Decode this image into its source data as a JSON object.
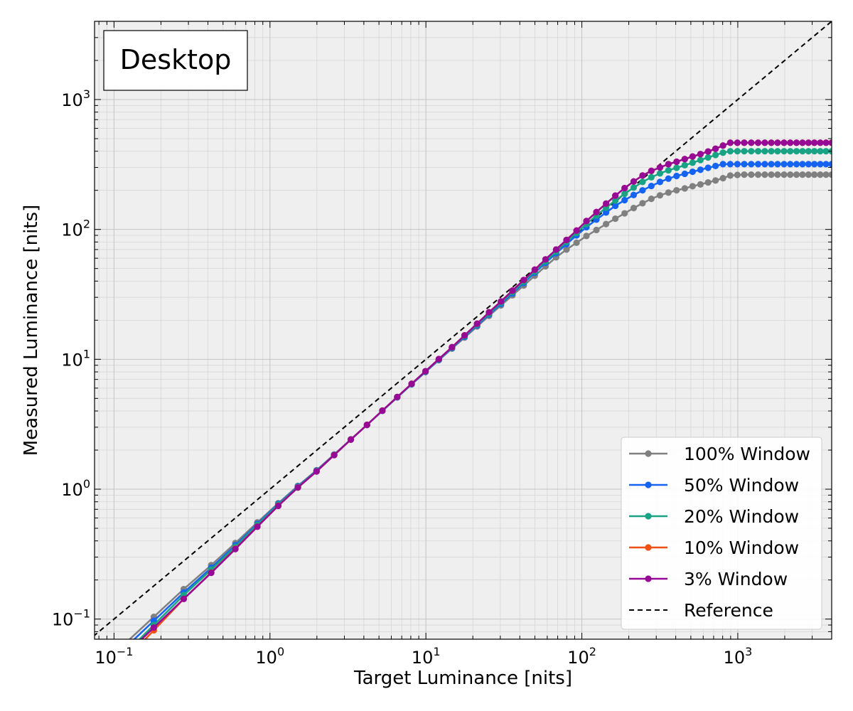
{
  "chart_data": {
    "type": "line",
    "title": "Desktop",
    "xlabel": "Target Luminance [nits]",
    "ylabel": "Measured Luminance [nits]",
    "xscale": "log",
    "yscale": "log",
    "xlim": [
      0.075,
      4000
    ],
    "ylim": [
      0.07,
      4000
    ],
    "grid": true,
    "legend_position": "lower right",
    "x_tick_labels": [
      "10",
      "10",
      "10",
      "10",
      "10"
    ],
    "x_tick_exponents": [
      "−1",
      "0",
      "1",
      "2",
      "3"
    ],
    "y_tick_labels": [
      "10",
      "10",
      "10",
      "10"
    ],
    "y_tick_exponents": [
      "−1",
      "0",
      "1",
      "3"
    ],
    "y_tick_label_2": "10",
    "y_tick_exponent_2": "2",
    "colors": {
      "100% Window": "#808080",
      "50% Window": "#1463f3",
      "20% Window": "#18a484",
      "10% Window": "#f05014",
      "3% Window": "#960a96",
      "Reference": "#000000",
      "plot_background": "#efefef"
    },
    "x": [
      0.18,
      0.28,
      0.42,
      0.6,
      0.83,
      1.13,
      1.51,
      1.99,
      2.58,
      3.3,
      4.19,
      5.26,
      6.55,
      8.1,
      9.94,
      12.1,
      14.7,
      17.7,
      21.3,
      25.4,
      30.3,
      35.9,
      42.4,
      49.9,
      58.5,
      68.4,
      79.7,
      92.5,
      107,
      124,
      143,
      164,
      188,
      215,
      245,
      279,
      317,
      359,
      405,
      457,
      513,
      576,
      645,
      720,
      804,
      895,
      994,
      1100,
      1220,
      1350,
      1490,
      1640,
      1800,
      1980,
      2170,
      2380,
      2600,
      2840,
      3100,
      3380,
      3680,
      4000
    ],
    "series": [
      {
        "name": "100% Window",
        "values": [
          0.104,
          0.17,
          0.26,
          0.385,
          0.555,
          0.78,
          1.06,
          1.4,
          1.85,
          2.42,
          3.13,
          4.02,
          5.1,
          6.42,
          7.98,
          9.85,
          12.1,
          14.7,
          17.9,
          21.6,
          26.0,
          31.1,
          37.0,
          44.0,
          52.0,
          61.0,
          70.0,
          79.0,
          89.0,
          99.0,
          110,
          121,
          133,
          146,
          159,
          172,
          183,
          192,
          200,
          207,
          215,
          222,
          230,
          238,
          248,
          260,
          263,
          264,
          264,
          264,
          264,
          264,
          264,
          264,
          264,
          264,
          264,
          264,
          264,
          264,
          264,
          264
        ]
      },
      {
        "name": "50% Window",
        "values": [
          0.097,
          0.16,
          0.248,
          0.37,
          0.54,
          0.77,
          1.05,
          1.39,
          1.84,
          2.41,
          3.12,
          4.01,
          5.09,
          6.42,
          8.0,
          9.9,
          12.2,
          14.9,
          18.2,
          22.1,
          26.7,
          32.2,
          38.7,
          46.4,
          55.3,
          65.5,
          77.0,
          90.0,
          104,
          119,
          135,
          152,
          168,
          184,
          200,
          216,
          232,
          246,
          258,
          268,
          278,
          288,
          298,
          308,
          318,
          318,
          318,
          318,
          318,
          318,
          318,
          318,
          318,
          318,
          318,
          318,
          318,
          318,
          318,
          318,
          318,
          318
        ]
      },
      {
        "name": "20% Window",
        "values": [
          0.09,
          0.153,
          0.24,
          0.36,
          0.53,
          0.76,
          1.04,
          1.38,
          1.84,
          2.41,
          3.13,
          4.02,
          5.11,
          6.45,
          8.05,
          9.97,
          12.3,
          15.1,
          18.5,
          22.5,
          27.3,
          32.9,
          39.6,
          47.5,
          56.7,
          67.5,
          80.0,
          94.0,
          110,
          128,
          147,
          167,
          188,
          210,
          232,
          252,
          270,
          285,
          298,
          312,
          326,
          342,
          358,
          374,
          390,
          400,
          400,
          400,
          400,
          400,
          400,
          400,
          400,
          400,
          400,
          400,
          400,
          400,
          400,
          400,
          400,
          400
        ]
      },
      {
        "name": "10% Window",
        "values": [
          0.082,
          0.143,
          0.228,
          0.348,
          0.515,
          0.745,
          1.03,
          1.37,
          1.83,
          2.41,
          3.13,
          4.03,
          5.13,
          6.48,
          8.1,
          10.05,
          12.4,
          15.3,
          18.8,
          23.0,
          27.9,
          33.8,
          40.8,
          49.0,
          58.8,
          70.0,
          83.0,
          98.0,
          116,
          136,
          158,
          182,
          208,
          234,
          260,
          282,
          300,
          318,
          332,
          348,
          364,
          380,
          398,
          418,
          442,
          465,
          465,
          465,
          465,
          465,
          465,
          465,
          465,
          465,
          465,
          465,
          465,
          465,
          465,
          465,
          465,
          465
        ]
      },
      {
        "name": "3% Window",
        "values": [
          0.086,
          0.143,
          0.227,
          0.346,
          0.514,
          0.744,
          1.03,
          1.37,
          1.83,
          2.41,
          3.13,
          4.03,
          5.13,
          6.48,
          8.1,
          10.05,
          12.4,
          15.3,
          18.8,
          23.0,
          27.9,
          33.8,
          40.8,
          49.0,
          58.8,
          70.0,
          83.0,
          98.0,
          116,
          136,
          158,
          182,
          208,
          234,
          260,
          282,
          300,
          318,
          332,
          348,
          364,
          380,
          398,
          418,
          442,
          465,
          465,
          465,
          465,
          465,
          465,
          465,
          465,
          465,
          465,
          465,
          465,
          465,
          465,
          465,
          465,
          465
        ]
      },
      {
        "name": "Reference",
        "style": "dashed",
        "values": "y = x"
      }
    ]
  }
}
